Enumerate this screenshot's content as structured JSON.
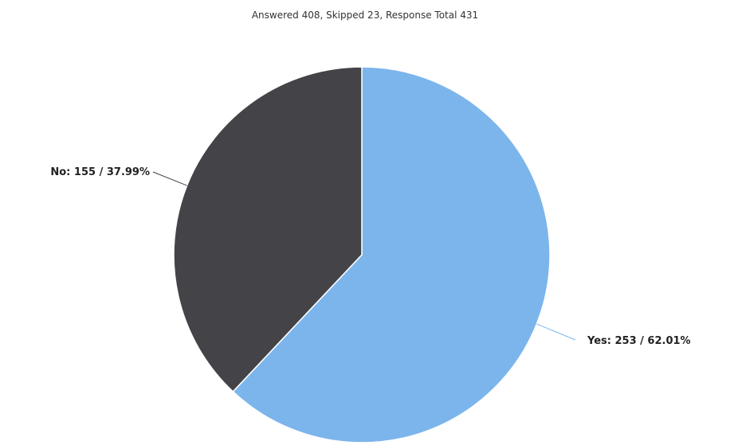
{
  "chart_data": {
    "type": "pie",
    "subtitle": "Answered 408, Skipped 23, Response Total 431",
    "slices": [
      {
        "name": "Yes",
        "value": 253,
        "percent": 62.01,
        "label": "Yes: 253 / 62.01%",
        "color": "#7cb5ec"
      },
      {
        "name": "No",
        "value": 155,
        "percent": 37.99,
        "label": "No: 155 / 37.99%",
        "color": "#434348"
      }
    ],
    "legend": false
  }
}
